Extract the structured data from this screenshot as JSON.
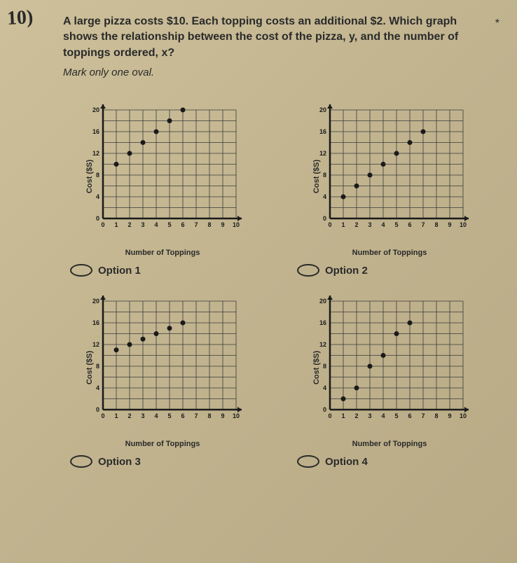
{
  "handwritten_number": "10)",
  "question_text": "A large pizza costs $10. Each topping costs an additional $2. Which graph shows the relationship between the cost of the pizza, y, and the number of toppings ordered, x?",
  "instruction": "Mark only one oval.",
  "asterisk": "*",
  "chart_common": {
    "x_label": "Number of Toppings",
    "y_label": "Cost ($S)",
    "xlim": [
      0,
      10
    ],
    "ylim": [
      0,
      20
    ],
    "xtick_step": 1,
    "ytick_step": 2,
    "ytick_label_step": 4,
    "grid_color": "#3a3a3a",
    "axis_color": "#1a1a1a",
    "point_color": "#1a1a1a",
    "point_radius": 3.5,
    "background": "#c4b896",
    "label_fontsize": 11,
    "tick_fontsize": 9
  },
  "options": [
    {
      "label": "Option 1",
      "points": [
        [
          1,
          10
        ],
        [
          2,
          12
        ],
        [
          3,
          14
        ],
        [
          4,
          16
        ],
        [
          5,
          18
        ],
        [
          6,
          20
        ]
      ]
    },
    {
      "label": "Option 2",
      "points": [
        [
          1,
          4
        ],
        [
          2,
          6
        ],
        [
          3,
          8
        ],
        [
          4,
          10
        ],
        [
          5,
          12
        ],
        [
          6,
          14
        ],
        [
          7,
          16
        ]
      ]
    },
    {
      "label": "Option 3",
      "points": [
        [
          1,
          11
        ],
        [
          2,
          12
        ],
        [
          3,
          13
        ],
        [
          4,
          14
        ],
        [
          5,
          15
        ],
        [
          6,
          16
        ]
      ]
    },
    {
      "label": "Option 4",
      "points": [
        [
          1,
          2
        ],
        [
          2,
          4
        ],
        [
          3,
          8
        ],
        [
          4,
          10
        ],
        [
          5,
          14
        ],
        [
          6,
          16
        ]
      ]
    }
  ]
}
